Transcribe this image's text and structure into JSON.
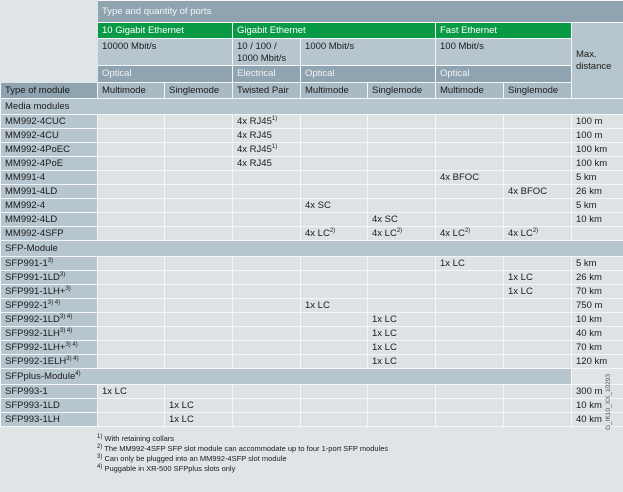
{
  "header": {
    "title": "Type and quantity of ports",
    "groups": [
      "10 Gigabit Ethernet",
      "Gigabit Ethernet",
      "Fast Ethernet"
    ],
    "speeds": [
      "10000 Mbit/s",
      "10 / 100 / 1000 Mbit/s",
      "1000 Mbit/s",
      "100 Mbit/s"
    ],
    "media": [
      "Optical",
      "Electrical",
      "Optical",
      "Optical"
    ],
    "max_distance": "Max. distance",
    "columns": [
      "Type of module",
      "Multimode",
      "Singlemode",
      "Twisted Pair",
      "Multimode",
      "Singlemode",
      "Multimode",
      "Singlemode"
    ]
  },
  "sections": [
    {
      "title": "Media modules",
      "sup": "",
      "rows": [
        {
          "name": "MM992-4CUC",
          "sup": "",
          "cells": [
            "",
            "",
            "4x RJ45",
            "",
            "",
            "",
            ""
          ],
          "csup": [
            "",
            "",
            "1)",
            "",
            "",
            "",
            ""
          ],
          "dist": "100 m"
        },
        {
          "name": "MM992-4CU",
          "sup": "",
          "cells": [
            "",
            "",
            "4x RJ45",
            "",
            "",
            "",
            ""
          ],
          "csup": [
            "",
            "",
            "",
            "",
            "",
            "",
            ""
          ],
          "dist": "100 m"
        },
        {
          "name": "MM992-4PoEC",
          "sup": "",
          "cells": [
            "",
            "",
            "4x RJ45",
            "",
            "",
            "",
            ""
          ],
          "csup": [
            "",
            "",
            "1)",
            "",
            "",
            "",
            ""
          ],
          "dist": "100 km"
        },
        {
          "name": "MM992-4PoE",
          "sup": "",
          "cells": [
            "",
            "",
            "4x RJ45",
            "",
            "",
            "",
            ""
          ],
          "csup": [
            "",
            "",
            "",
            "",
            "",
            "",
            ""
          ],
          "dist": "100 km"
        },
        {
          "name": "MM991-4",
          "sup": "",
          "cells": [
            "",
            "",
            "",
            "",
            "",
            "4x BFOC",
            ""
          ],
          "csup": [
            "",
            "",
            "",
            "",
            "",
            "",
            ""
          ],
          "dist": "5 km"
        },
        {
          "name": "MM991-4LD",
          "sup": "",
          "cells": [
            "",
            "",
            "",
            "",
            "",
            "",
            "4x BFOC"
          ],
          "csup": [
            "",
            "",
            "",
            "",
            "",
            "",
            ""
          ],
          "dist": "26 km"
        },
        {
          "name": "MM992-4",
          "sup": "",
          "cells": [
            "",
            "",
            "",
            "4x SC",
            "",
            "",
            ""
          ],
          "csup": [
            "",
            "",
            "",
            "",
            "",
            "",
            ""
          ],
          "dist": "5 km"
        },
        {
          "name": "MM992-4LD",
          "sup": "",
          "cells": [
            "",
            "",
            "",
            "",
            "4x SC",
            "",
            ""
          ],
          "csup": [
            "",
            "",
            "",
            "",
            "",
            "",
            ""
          ],
          "dist": "10 km"
        },
        {
          "name": "MM992-4SFP",
          "sup": "",
          "cells": [
            "",
            "",
            "",
            "4x LC",
            "4x LC",
            "4x LC",
            "4x LC"
          ],
          "csup": [
            "",
            "",
            "",
            "2)",
            "2)",
            "2)",
            "2)"
          ],
          "dist": ""
        }
      ]
    },
    {
      "title": "SFP-Module",
      "sup": "",
      "rows": [
        {
          "name": "SFP991-1",
          "sup": "3)",
          "cells": [
            "",
            "",
            "",
            "",
            "",
            "1x LC",
            ""
          ],
          "csup": [
            "",
            "",
            "",
            "",
            "",
            "",
            ""
          ],
          "dist": "5 km"
        },
        {
          "name": "SFP991-1LD",
          "sup": "3)",
          "cells": [
            "",
            "",
            "",
            "",
            "",
            "",
            "1x LC"
          ],
          "csup": [
            "",
            "",
            "",
            "",
            "",
            "",
            ""
          ],
          "dist": "26 km"
        },
        {
          "name": "SFP991-1LH+",
          "sup": "3)",
          "cells": [
            "",
            "",
            "",
            "",
            "",
            "",
            "1x LC"
          ],
          "csup": [
            "",
            "",
            "",
            "",
            "",
            "",
            ""
          ],
          "dist": "70 km"
        },
        {
          "name": "SFP992-1",
          "sup": "3) 4)",
          "cells": [
            "",
            "",
            "",
            "1x LC",
            "",
            "",
            ""
          ],
          "csup": [
            "",
            "",
            "",
            "",
            "",
            "",
            ""
          ],
          "dist": "750 m"
        },
        {
          "name": "SFP992-1LD",
          "sup": "3) 4)",
          "cells": [
            "",
            "",
            "",
            "",
            "1x LC",
            "",
            ""
          ],
          "csup": [
            "",
            "",
            "",
            "",
            "",
            "",
            ""
          ],
          "dist": "10 km"
        },
        {
          "name": "SFP992-1LH",
          "sup": "3) 4)",
          "cells": [
            "",
            "",
            "",
            "",
            "1x LC",
            "",
            ""
          ],
          "csup": [
            "",
            "",
            "",
            "",
            "",
            "",
            ""
          ],
          "dist": "40 km"
        },
        {
          "name": "SFP992-1LH+",
          "sup": "3) 4)",
          "cells": [
            "",
            "",
            "",
            "",
            "1x LC",
            "",
            ""
          ],
          "csup": [
            "",
            "",
            "",
            "",
            "",
            "",
            ""
          ],
          "dist": "70 km"
        },
        {
          "name": "SFP992-1ELH",
          "sup": "3) 4)",
          "cells": [
            "",
            "",
            "",
            "",
            "1x LC",
            "",
            ""
          ],
          "csup": [
            "",
            "",
            "",
            "",
            "",
            "",
            ""
          ],
          "dist": "120 km"
        }
      ]
    },
    {
      "title": "SFPplus-Module",
      "sup": "4)",
      "rows": [
        {
          "name": "SFP993-1",
          "sup": "",
          "cells": [
            "1x LC",
            "",
            "",
            "",
            "",
            "",
            ""
          ],
          "csup": [
            "",
            "",
            "",
            "",
            "",
            "",
            ""
          ],
          "dist": "300 m"
        },
        {
          "name": "SFP993-1LD",
          "sup": "",
          "cells": [
            "",
            "1x LC",
            "",
            "",
            "",
            "",
            ""
          ],
          "csup": [
            "",
            "",
            "",
            "",
            "",
            "",
            ""
          ],
          "dist": "10 km"
        },
        {
          "name": "SFP993-1LH",
          "sup": "",
          "cells": [
            "",
            "1x LC",
            "",
            "",
            "",
            "",
            ""
          ],
          "csup": [
            "",
            "",
            "",
            "",
            "",
            "",
            ""
          ],
          "dist": "40 km"
        }
      ]
    }
  ],
  "footnotes": [
    {
      "mark": "1)",
      "text": "With retaining collars"
    },
    {
      "mark": "2)",
      "text": "The MM992-4SFP SFP slot module can accommodate up to four 1-port SFP modules"
    },
    {
      "mark": "3)",
      "text": "Can only be plugged into an MM992-4SFP slot module"
    },
    {
      "mark": "4)",
      "text": "Puggable in XR-500 SFPplus slots only"
    }
  ],
  "figure_code": "G_IK10_XX_10293"
}
